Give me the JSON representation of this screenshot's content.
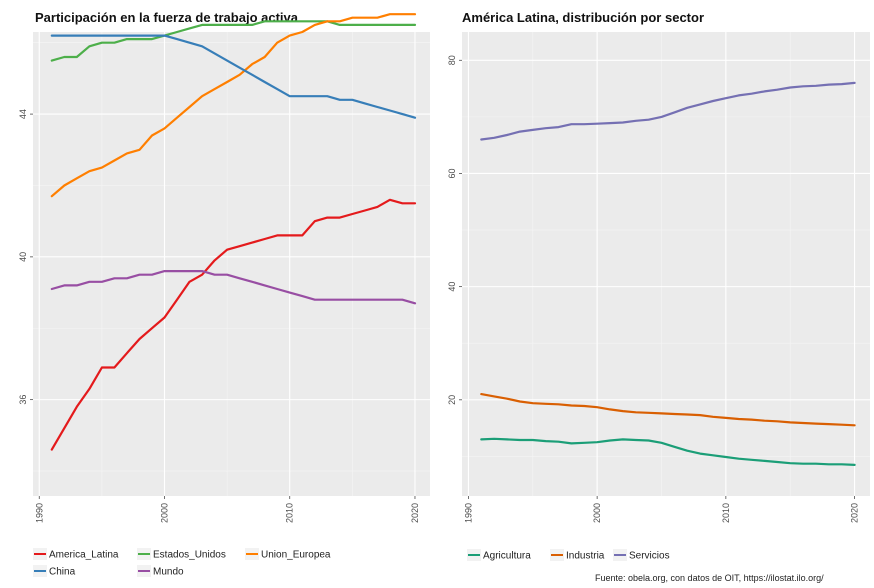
{
  "source": "Fuente: obela.org, con datos de OIT, https://ilostat.ilo.org/",
  "chart_data": [
    {
      "type": "line",
      "title": "Participación en la fuerza de trabajo activa",
      "xlabel": "",
      "ylabel": "",
      "xlim": [
        1991,
        2020
      ],
      "ylim": [
        33.3,
        46.3
      ],
      "x_ticks": [
        1990,
        2000,
        2010,
        2020
      ],
      "y_ticks": [
        36,
        40,
        44
      ],
      "grid": true,
      "legend_position": "bottom",
      "x": [
        1991,
        1992,
        1993,
        1994,
        1995,
        1996,
        1997,
        1998,
        1999,
        2000,
        2001,
        2002,
        2003,
        2004,
        2005,
        2006,
        2007,
        2008,
        2009,
        2010,
        2011,
        2012,
        2013,
        2014,
        2015,
        2016,
        2017,
        2018,
        2019,
        2020
      ],
      "series": [
        {
          "name": "America_Latina",
          "color": "#e41a1c",
          "values": [
            34.6,
            35.2,
            35.8,
            36.3,
            36.9,
            36.9,
            37.3,
            37.7,
            38.0,
            38.3,
            38.8,
            39.3,
            39.5,
            39.9,
            40.2,
            40.3,
            40.4,
            40.5,
            40.6,
            40.6,
            40.6,
            41.0,
            41.1,
            41.1,
            41.2,
            41.3,
            41.4,
            41.6,
            41.5,
            41.5
          ]
        },
        {
          "name": "Estados_Unidos",
          "color": "#4daf4a",
          "values": [
            45.5,
            45.6,
            45.6,
            45.9,
            46.0,
            46.0,
            46.1,
            46.1,
            46.1,
            46.2,
            46.3,
            46.4,
            46.5,
            46.5,
            46.5,
            46.5,
            46.5,
            46.6,
            46.6,
            46.6,
            46.6,
            46.6,
            46.6,
            46.5,
            46.5,
            46.5,
            46.5,
            46.5,
            46.5,
            46.5
          ]
        },
        {
          "name": "Union_Europea",
          "color": "#ff7f00",
          "values": [
            41.7,
            42.0,
            42.2,
            42.4,
            42.5,
            42.7,
            42.9,
            43.0,
            43.4,
            43.6,
            43.9,
            44.2,
            44.5,
            44.7,
            44.9,
            45.1,
            45.4,
            45.6,
            46.0,
            46.2,
            46.3,
            46.5,
            46.6,
            46.6,
            46.7,
            46.7,
            46.7,
            46.8,
            46.8,
            46.8
          ]
        },
        {
          "name": "China",
          "color": "#377eb8",
          "values": [
            46.2,
            46.2,
            46.2,
            46.2,
            46.2,
            46.2,
            46.2,
            46.2,
            46.2,
            46.2,
            46.1,
            46.0,
            45.9,
            45.7,
            45.5,
            45.3,
            45.1,
            44.9,
            44.7,
            44.5,
            44.5,
            44.5,
            44.5,
            44.4,
            44.4,
            44.3,
            44.2,
            44.1,
            44.0,
            43.9
          ]
        },
        {
          "name": "Mundo",
          "color": "#984ea3",
          "values": [
            39.1,
            39.2,
            39.2,
            39.3,
            39.3,
            39.4,
            39.4,
            39.5,
            39.5,
            39.6,
            39.6,
            39.6,
            39.6,
            39.5,
            39.5,
            39.4,
            39.3,
            39.2,
            39.1,
            39.0,
            38.9,
            38.8,
            38.8,
            38.8,
            38.8,
            38.8,
            38.8,
            38.8,
            38.8,
            38.7
          ]
        }
      ]
    },
    {
      "type": "line",
      "title": "América Latina, distribución por sector",
      "xlabel": "",
      "ylabel": "",
      "xlim": [
        1991,
        2020
      ],
      "ylim": [
        3,
        85
      ],
      "x_ticks": [
        1990,
        2000,
        2010,
        2020
      ],
      "y_ticks": [
        20,
        40,
        60,
        80
      ],
      "grid": true,
      "legend_position": "bottom",
      "x": [
        1991,
        1992,
        1993,
        1994,
        1995,
        1996,
        1997,
        1998,
        1999,
        2000,
        2001,
        2002,
        2003,
        2004,
        2005,
        2006,
        2007,
        2008,
        2009,
        2010,
        2011,
        2012,
        2013,
        2014,
        2015,
        2016,
        2017,
        2018,
        2019,
        2020
      ],
      "series": [
        {
          "name": "Agricultura",
          "color": "#1b9e77",
          "values": [
            13.0,
            13.1,
            13.0,
            12.9,
            12.9,
            12.7,
            12.6,
            12.3,
            12.4,
            12.5,
            12.8,
            13.0,
            12.9,
            12.8,
            12.4,
            11.7,
            11.0,
            10.5,
            10.2,
            9.9,
            9.6,
            9.4,
            9.2,
            9.0,
            8.8,
            8.7,
            8.7,
            8.6,
            8.6,
            8.5
          ]
        },
        {
          "name": "Industria",
          "color": "#d95f02",
          "values": [
            21.0,
            20.6,
            20.2,
            19.7,
            19.4,
            19.3,
            19.2,
            19.0,
            18.9,
            18.7,
            18.3,
            18.0,
            17.8,
            17.7,
            17.6,
            17.5,
            17.4,
            17.3,
            17.0,
            16.8,
            16.6,
            16.5,
            16.3,
            16.2,
            16.0,
            15.9,
            15.8,
            15.7,
            15.6,
            15.5
          ]
        },
        {
          "name": "Servicios",
          "color": "#7570b3",
          "values": [
            66.0,
            66.3,
            66.8,
            67.4,
            67.7,
            68.0,
            68.2,
            68.7,
            68.7,
            68.8,
            68.9,
            69.0,
            69.3,
            69.5,
            70.0,
            70.8,
            71.6,
            72.2,
            72.8,
            73.3,
            73.8,
            74.1,
            74.5,
            74.8,
            75.2,
            75.4,
            75.5,
            75.7,
            75.8,
            76.0
          ]
        }
      ]
    }
  ]
}
